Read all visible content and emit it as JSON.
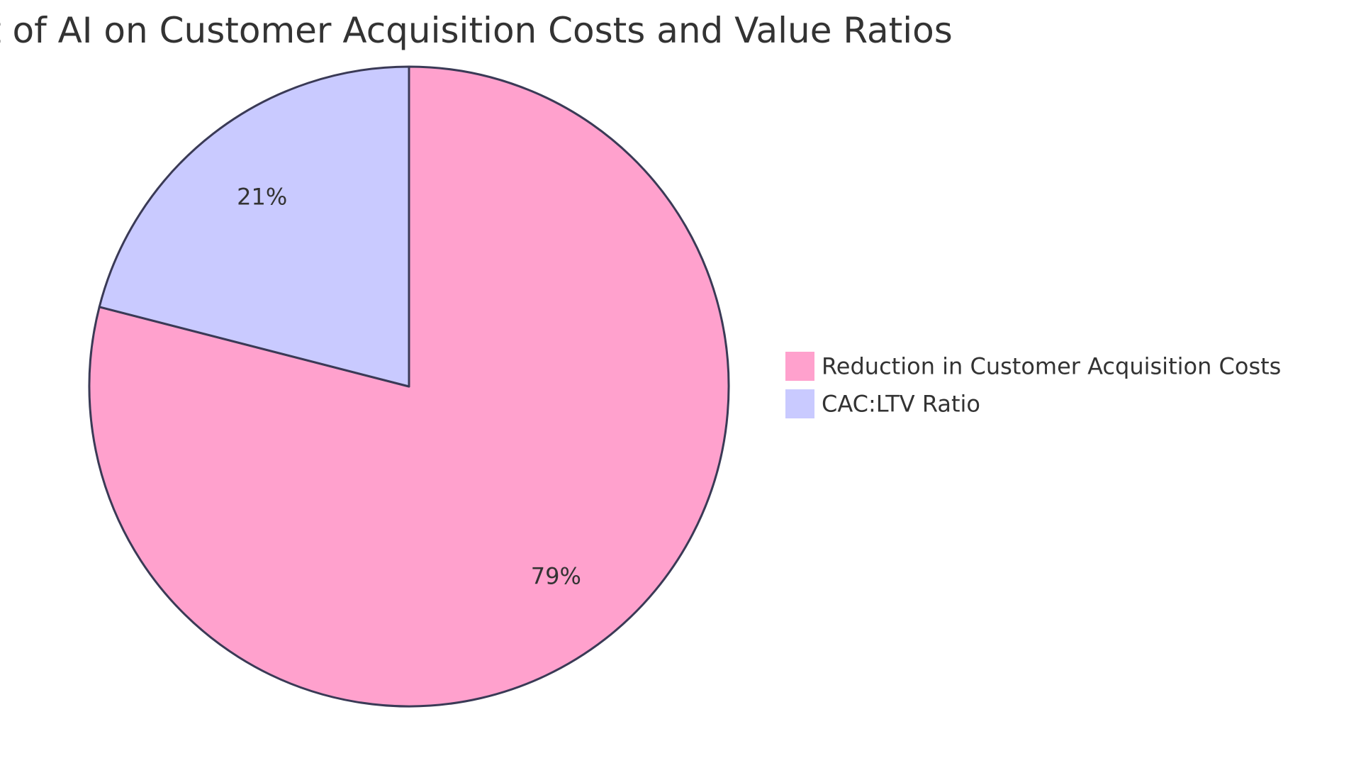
{
  "chart_data": {
    "type": "pie",
    "title": "t of AI on Customer Acquisition Costs and Value Ratios",
    "categories": [
      "Reduction in Customer Acquisition Costs",
      "CAC:LTV Ratio"
    ],
    "values": [
      79,
      21
    ],
    "labels": [
      "79%",
      "21%"
    ],
    "colors": [
      "#FFA1CD",
      "#C9CAFF"
    ],
    "stroke_color": "#3A3A56",
    "legend_placement": "right"
  }
}
